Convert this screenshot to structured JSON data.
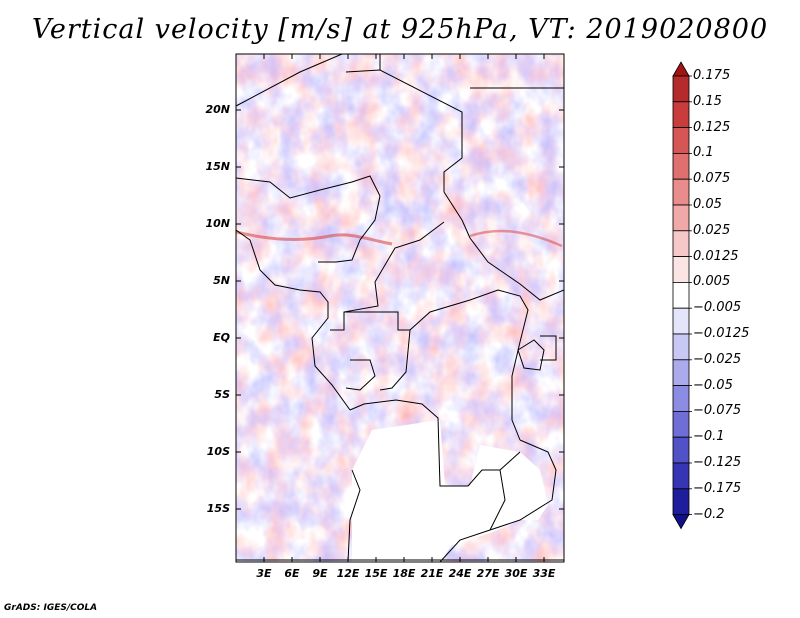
{
  "title": "Vertical velocity [m/s] at 925hPa, VT: 2019020800",
  "credit": "GrADS: IGES/COLA",
  "lat_labels": [
    "20N",
    "15N",
    "10N",
    "5N",
    "EQ",
    "5S",
    "10S",
    "15S"
  ],
  "lon_labels": [
    "3E",
    "6E",
    "9E",
    "12E",
    "15E",
    "18E",
    "21E",
    "24E",
    "27E",
    "30E",
    "33E"
  ],
  "colorbar": {
    "labels": [
      "0.175",
      "0.15",
      "0.125",
      "0.1",
      "0.075",
      "0.05",
      "0.025",
      "0.0125",
      "0.005",
      "−0.005",
      "−0.0125",
      "−0.025",
      "−0.05",
      "−0.075",
      "−0.1",
      "−0.125",
      "−0.175",
      "−0.2"
    ],
    "colors": [
      "#a01414",
      "#b52a2a",
      "#c83c3c",
      "#d65656",
      "#e07070",
      "#e88c8c",
      "#f0a8a8",
      "#f6c8c8",
      "#fbe4e4",
      "#ffffff",
      "#e4e4fb",
      "#c8c8f4",
      "#aaaaec",
      "#8c8ce2",
      "#6e6ed6",
      "#5252c8",
      "#3636b4",
      "#1e1e9c",
      "#10108a"
    ]
  }
}
